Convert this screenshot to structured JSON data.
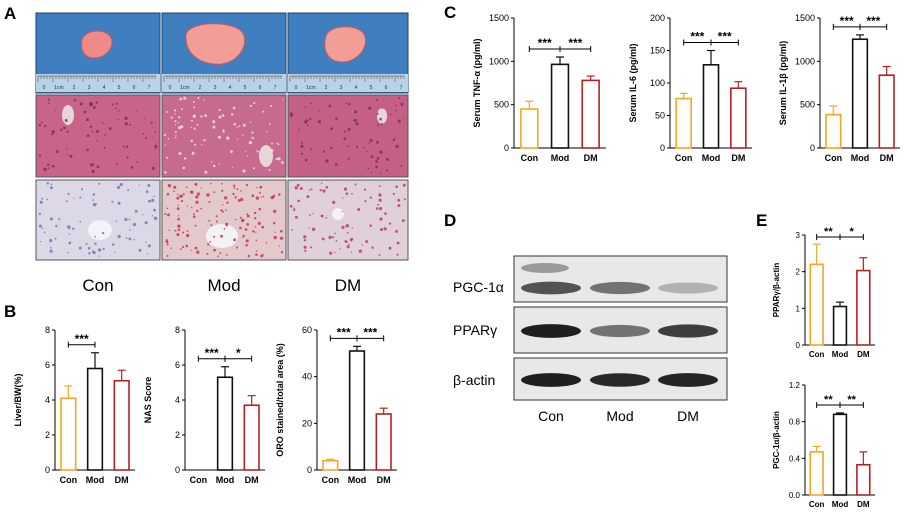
{
  "panel_labels": {
    "A": "A",
    "B": "B",
    "C": "C",
    "D": "D",
    "E": "E"
  },
  "panelA": {
    "group_labels": [
      "Con",
      "Mod",
      "DM"
    ],
    "ruler_numbers": [
      "0",
      "1cm",
      "2",
      "3",
      "4",
      "5",
      "6",
      "7"
    ],
    "colors": {
      "tray": "#3f7fbf",
      "liver": "#f08a86",
      "he": "#c8648a",
      "oro": "#dcd8e6"
    }
  },
  "panelD": {
    "proteins": [
      "PGC-1α",
      "PPARγ",
      "β-actin"
    ],
    "lanes": [
      "Con",
      "Mod",
      "DM"
    ],
    "band_intensity": [
      [
        0.7,
        0.55,
        0.25
      ],
      [
        0.95,
        0.55,
        0.8
      ],
      [
        0.95,
        0.9,
        0.92
      ]
    ]
  },
  "colors": {
    "Con": "#f5a623",
    "Mod": "#111111",
    "DM": "#b22222"
  },
  "chart_data": [
    {
      "id": "B1",
      "type": "bar",
      "categories": [
        "Con",
        "Mod",
        "DM"
      ],
      "values": [
        4.1,
        5.8,
        5.1
      ],
      "errors": [
        0.7,
        0.9,
        0.6
      ],
      "ylabel": "Liver/BW(%)",
      "ylim": [
        0,
        8
      ],
      "yticks": [
        0,
        2,
        4,
        6,
        8
      ],
      "ytick_labels": [
        "0",
        "2",
        "4",
        "6",
        "8"
      ],
      "sig": [
        {
          "from": 0,
          "to": 1,
          "label": "***"
        }
      ]
    },
    {
      "id": "B2",
      "type": "bar",
      "categories": [
        "Con",
        "Mod",
        "DM"
      ],
      "values": [
        0,
        5.3,
        3.7
      ],
      "errors": [
        0,
        0.6,
        0.55
      ],
      "ylabel": "NAS Score",
      "ylim": [
        0,
        8
      ],
      "yticks": [
        0,
        2,
        4,
        6,
        8
      ],
      "ytick_labels": [
        "0",
        "2",
        "4",
        "6",
        "8"
      ],
      "sig": [
        {
          "from": 0,
          "to": 1,
          "label": "***"
        },
        {
          "from": 1,
          "to": 2,
          "label": "*"
        }
      ]
    },
    {
      "id": "B3",
      "type": "bar",
      "categories": [
        "Con",
        "Mod",
        "DM"
      ],
      "values": [
        4,
        51,
        24
      ],
      "errors": [
        0.6,
        2,
        2.5
      ],
      "ylabel": "ORO stained/total area (%)",
      "ylim": [
        0,
        60
      ],
      "yticks": [
        0,
        20,
        40,
        60
      ],
      "ytick_labels": [
        "0",
        "20",
        "40",
        "60"
      ],
      "sig": [
        {
          "from": 0,
          "to": 1,
          "label": "***"
        },
        {
          "from": 1,
          "to": 2,
          "label": "***"
        }
      ]
    },
    {
      "id": "C1",
      "type": "bar",
      "categories": [
        "Con",
        "Mod",
        "DM"
      ],
      "values": [
        450,
        965,
        780
      ],
      "errors": [
        90,
        85,
        50
      ],
      "ylabel": "Serum TNF-α (pg/ml)",
      "ylim": [
        0,
        1500
      ],
      "yticks": [
        0,
        500,
        1000,
        1500
      ],
      "ytick_labels": [
        "0",
        "500",
        "1000",
        "1500"
      ],
      "sig": [
        {
          "from": 0,
          "to": 1,
          "label": "***"
        },
        {
          "from": 1,
          "to": 2,
          "label": "***"
        }
      ]
    },
    {
      "id": "C2",
      "type": "bar",
      "categories": [
        "Con",
        "Mod",
        "DM"
      ],
      "values": [
        76,
        128,
        92
      ],
      "errors": [
        8,
        22,
        10
      ],
      "ylabel": "Serum IL-6 (pg/ml)",
      "ylim": [
        0,
        200
      ],
      "yticks": [
        0,
        50,
        100,
        150,
        200
      ],
      "ytick_labels": [
        "0",
        "50",
        "100",
        "150",
        "200"
      ],
      "sig": [
        {
          "from": 0,
          "to": 1,
          "label": "***"
        },
        {
          "from": 1,
          "to": 2,
          "label": "***"
        }
      ]
    },
    {
      "id": "C3",
      "type": "bar",
      "categories": [
        "Con",
        "Mod",
        "DM"
      ],
      "values": [
        385,
        1255,
        840
      ],
      "errors": [
        100,
        50,
        100
      ],
      "ylabel": "Serum IL-1β (pg/ml)",
      "ylim": [
        0,
        1500
      ],
      "yticks": [
        0,
        500,
        1000,
        1500
      ],
      "ytick_labels": [
        "0",
        "500",
        "1000",
        "1500"
      ],
      "sig": [
        {
          "from": 0,
          "to": 1,
          "label": "***"
        },
        {
          "from": 1,
          "to": 2,
          "label": "***"
        }
      ]
    },
    {
      "id": "E1",
      "type": "bar",
      "categories": [
        "Con",
        "Mod",
        "DM"
      ],
      "values": [
        2.2,
        1.05,
        2.03
      ],
      "errors": [
        0.55,
        0.12,
        0.35
      ],
      "ylabel": "PPARγ/β-actin",
      "ylim": [
        0,
        3
      ],
      "yticks": [
        0,
        1,
        2,
        3
      ],
      "ytick_labels": [
        "0",
        "1",
        "2",
        "3"
      ],
      "sig": [
        {
          "from": 0,
          "to": 1,
          "label": "**"
        },
        {
          "from": 1,
          "to": 2,
          "label": "*"
        }
      ]
    },
    {
      "id": "E2",
      "type": "bar",
      "categories": [
        "Con",
        "Mod",
        "DM"
      ],
      "values": [
        0.47,
        0.88,
        0.33
      ],
      "errors": [
        0.06,
        0.015,
        0.14
      ],
      "ylabel": "PGC-1α/β-actin",
      "ylim": [
        0,
        1.2
      ],
      "yticks": [
        0,
        0.4,
        0.8,
        1.2
      ],
      "ytick_labels": [
        "0.0",
        "0.4",
        "0.8",
        "1.2"
      ],
      "sig": [
        {
          "from": 0,
          "to": 1,
          "label": "**"
        },
        {
          "from": 1,
          "to": 2,
          "label": "**"
        }
      ]
    }
  ]
}
